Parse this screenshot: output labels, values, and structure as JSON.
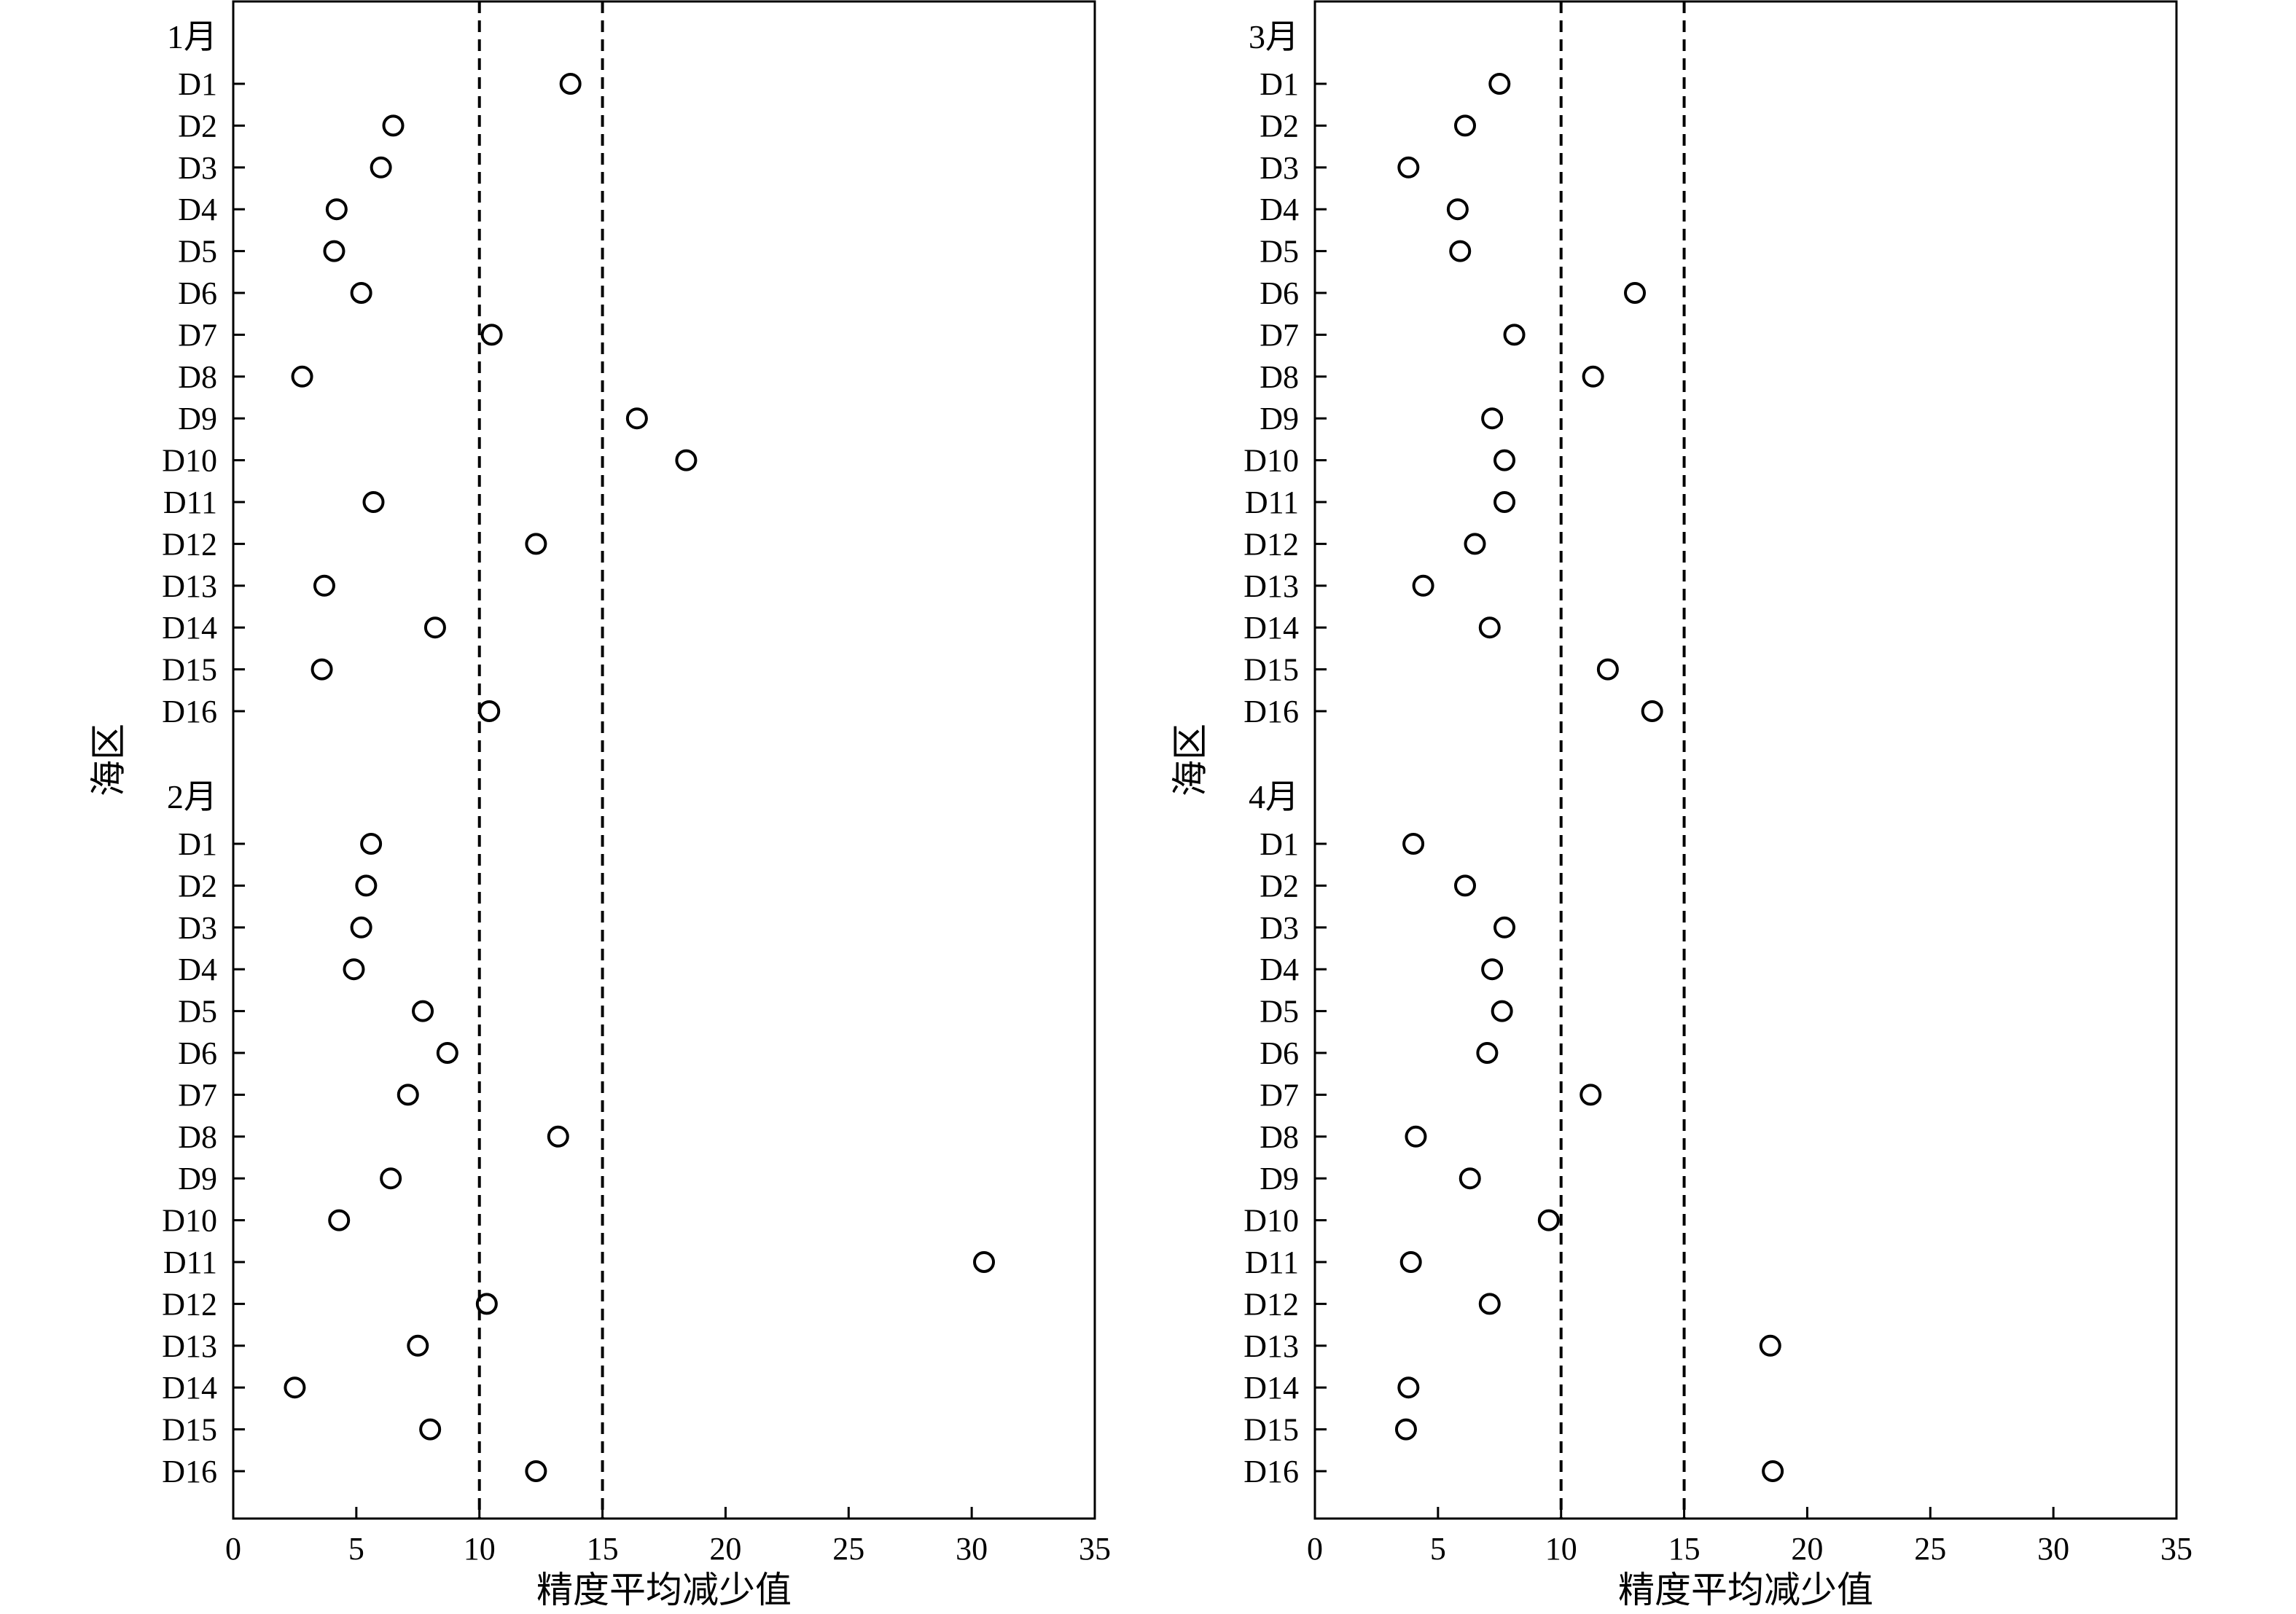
{
  "chart_data": [
    {
      "type": "scatter",
      "xlabel": "精度平均减少值",
      "ylabel": "海区",
      "xlim": [
        0,
        35
      ],
      "xticks": [
        "0",
        "5",
        "10",
        "15",
        "20",
        "25",
        "30",
        "35"
      ],
      "reference_lines": [
        10,
        15
      ],
      "groups": [
        {
          "label": "1月",
          "categories": [
            "D1",
            "D2",
            "D3",
            "D4",
            "D5",
            "D6",
            "D7",
            "D8",
            "D9",
            "D10",
            "D11",
            "D12",
            "D13",
            "D14",
            "D15",
            "D16"
          ],
          "values": [
            13.7,
            6.5,
            6.0,
            4.2,
            4.1,
            5.2,
            10.5,
            2.8,
            16.4,
            18.4,
            5.7,
            12.3,
            3.7,
            8.2,
            3.6,
            10.4
          ]
        },
        {
          "label": "2月",
          "categories": [
            "D1",
            "D2",
            "D3",
            "D4",
            "D5",
            "D6",
            "D7",
            "D8",
            "D9",
            "D10",
            "D11",
            "D12",
            "D13",
            "D14",
            "D15",
            "D16"
          ],
          "values": [
            5.6,
            5.4,
            5.2,
            4.9,
            7.7,
            8.7,
            7.1,
            13.2,
            6.4,
            4.3,
            30.5,
            10.3,
            7.5,
            2.5,
            8.0,
            12.3
          ]
        }
      ]
    },
    {
      "type": "scatter",
      "xlabel": "精度平均减少值",
      "ylabel": "海区",
      "xlim": [
        0,
        35
      ],
      "xticks": [
        "0",
        "5",
        "10",
        "15",
        "20",
        "25",
        "30",
        "35"
      ],
      "reference_lines": [
        10,
        15
      ],
      "groups": [
        {
          "label": "3月",
          "categories": [
            "D1",
            "D2",
            "D3",
            "D4",
            "D5",
            "D6",
            "D7",
            "D8",
            "D9",
            "D10",
            "D11",
            "D12",
            "D13",
            "D14",
            "D15",
            "D16"
          ],
          "values": [
            7.5,
            6.1,
            3.8,
            5.8,
            5.9,
            13.0,
            8.1,
            11.3,
            7.2,
            7.7,
            7.7,
            6.5,
            4.4,
            7.1,
            11.9,
            13.7
          ]
        },
        {
          "label": "4月",
          "categories": [
            "D1",
            "D2",
            "D3",
            "D4",
            "D5",
            "D6",
            "D7",
            "D8",
            "D9",
            "D10",
            "D11",
            "D12",
            "D13",
            "D14",
            "D15",
            "D16"
          ],
          "values": [
            4.0,
            6.1,
            7.7,
            7.2,
            7.6,
            7.0,
            11.2,
            4.1,
            6.3,
            9.5,
            3.9,
            7.1,
            18.5,
            3.8,
            3.7,
            18.6
          ]
        }
      ]
    }
  ]
}
